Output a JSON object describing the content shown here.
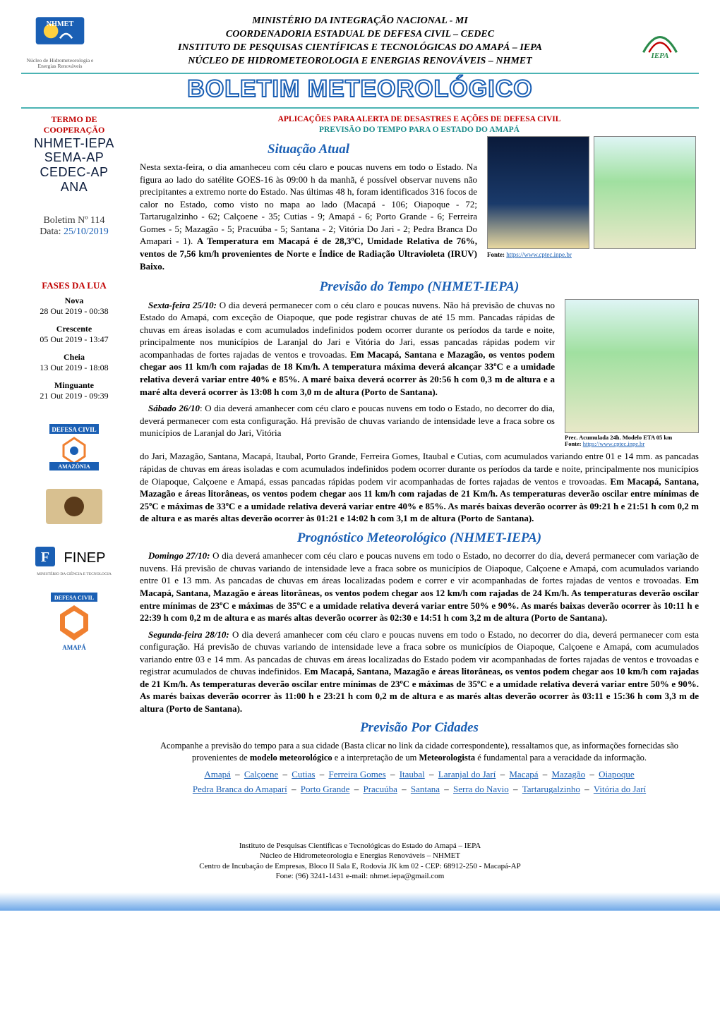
{
  "header": {
    "line1": "MINISTÉRIO DA INTEGRAÇÃO NACIONAL - MI",
    "line2": "COORDENADORIA ESTADUAL DE DEFESA CIVIL – CEDEC",
    "line3": "INSTITUTO DE PESQUISAS CIENTÍFICAS E TECNOLÓGICAS DO AMAPÁ – IEPA",
    "line4": "NÚCLEO DE HIDROMETEOROLOGIA E ENERGIAS RENOVÁVEIS – NHMET",
    "logo_left_caption": "Núcleo de Hidrometeorologia e Energias Renováveis",
    "logo_right_text": "IEPA"
  },
  "banner": {
    "title": "BOLETIM METEOROLÓGICO"
  },
  "sidebar": {
    "termo_label1": "TERMO DE",
    "termo_label2": "COOPERAÇÃO",
    "slab1": "NHMET-IEPA",
    "slab2": "SEMA-AP",
    "slab3": "CEDEC-AP",
    "slab4": "ANA",
    "boletim_label": "Boletim Nº ",
    "boletim_num": "114",
    "data_label": "Data: ",
    "data_value": "25/10/2019",
    "moon_title": "FASES DA LUA",
    "moon": [
      {
        "name": "Nova",
        "dt": "28 Out 2019 -  00:38"
      },
      {
        "name": "Crescente",
        "dt": "05 Out 2019 -  13:47"
      },
      {
        "name": "Cheia",
        "dt": "13 Out 2019 -  18:08"
      },
      {
        "name": "Minguante",
        "dt": "21 Out 2019 -  09:39"
      }
    ],
    "finep_text": "FINEP",
    "finep_sub": "MINISTÉRIO DA CIÊNCIA E TECNOLOGIA"
  },
  "alert": {
    "line_red": "APLICAÇÕES PARA ALERTA DE DESASTRES E AÇÕES DE DEFESA CIVIL",
    "line_teal": "PREVISÃO DO TEMPO PARA O ESTADO DO AMAPÁ"
  },
  "situacao": {
    "title": "Situação Atual",
    "body_plain": "Nesta sexta-feira, o dia amanheceu com céu claro e poucas nuvens em todo o Estado. Na figura ao lado do satélite GOES-16 às 09:00 h da manhã, é possível observar nuvens não precipitantes a extremo norte do Estado. Nas últimas 48 h, foram identificados 316 focos de calor no Estado, como visto no mapa ao lado (Macapá - 106; Oiapoque - 72; Tartarugalzinho - 62; Calçoene - 35; Cutias - 9; Amapá - 6; Porto Grande - 6; Ferreira Gomes - 5; Mazagão - 5; Pracuúba - 5; Santana - 2; Vitória Do Jari - 2; Pedra Branca Do Amapari - 1). ",
    "body_bold": "A Temperatura em Macapá é de 28,3ºC, Umidade Relativa de 76%, ventos de 7,56 km/h provenientes de Norte e Índice de Radiação Ultravioleta (IRUV) Baixo.",
    "fonte_label": "Fonte: ",
    "fonte_url": "https://www.cptec.inpe.br"
  },
  "previsao": {
    "title": "Previsão do Tempo (NHMET-IEPA)",
    "friday_label": "Sexta-feira 25/10:",
    "friday_plain": "   O dia deverá permanecer com o céu claro e poucas nuvens. Não há previsão de chuvas no Estado do Amapá, com exceção de Oiapoque, que pode registrar chuvas de até 15 mm. Pancadas rápidas de chuvas em áreas isoladas e com acumulados indefinidos podem ocorrer durante os períodos da tarde e noite, principalmente nos municípios de Laranjal do Jari e Vitória do Jari, essas pancadas rápidas podem vir acompanhadas de fortes rajadas de ventos e trovoadas. ",
    "friday_bold": "Em Macapá, Santana e Mazagão, os ventos podem chegar aos 11 km/h com rajadas de 18 Km/h. A temperatura máxima deverá alcançar 33ºC e a umidade relativa deverá variar entre 40% e 85%. A maré baixa deverá ocorrer às 20:56 h com 0,3 m de altura e a maré alta deverá ocorrer às 13:08 h com 3,0 m de altura (Porto de Santana).",
    "sat_label": "Sábado 26/10",
    "sat_plain1": ":   O dia deverá amanhecer com céu claro e poucas nuvens em todo o Estado, no decorrer do dia, deverá permanecer com esta configuração. Há previsão de chuvas variando de intensidade leve a fraca sobre os municípios de Laranjal do Jari, Vitória",
    "sat_plain2": "do Jari, Mazagão, Santana, Macapá, Itaubal, Porto Grande, Ferreira Gomes, Itaubal e Cutias, com acumulados variando entre 01 e 14 mm.  as pancadas rápidas de chuvas em áreas isoladas e com acumulados indefinidos podem ocorrer durante os períodos da tarde e noite, principalmente nos municípios de Oiapoque, Calçoene e Amapá, essas pancadas rápidas podem vir acompanhadas de fortes rajadas de ventos e trovoadas. ",
    "sat_bold": "Em Macapá, Santana, Mazagão e áreas litorâneas, os ventos podem chegar aos 11 km/h com rajadas de 21 Km/h. As temperaturas deverão oscilar entre mínimas de 25ºC e máximas de 33ºC e a umidade relativa deverá variar entre 40% e 85%. As marés baixas deverão ocorrer às 09:21 h e 21:51 h com 0,2 m de altura e as marés altas deverão ocorrer às 01:21 e 14:02 h com 3,1 m de altura (Porto de Santana).",
    "map_caption": "Prec. Acumulada 24h. Modelo ETA 05 km",
    "map_fonte_label": "Fonte: ",
    "map_fonte_url": "https://www.cptec.inpe.br"
  },
  "prognostico": {
    "title": "Prognóstico Meteorológico (NHMET-IEPA)",
    "sun_label": "Domingo 27/10:",
    "sun_plain": "   O dia deverá amanhecer com céu claro e poucas nuvens em todo o Estado, no decorrer do dia, deverá permanecer com variação de nuvens. Há previsão de chuvas variando de intensidade leve a fraca sobre os municípios de Oiapoque, Calçoene e Amapá, com acumulados variando entre 01 e 13 mm. As pancadas de chuvas em áreas localizadas podem e correr e vir acompanhadas de fortes rajadas de ventos e trovoadas. ",
    "sun_bold": "Em Macapá, Santana, Mazagão e áreas litorâneas, os ventos podem chegar aos 12 km/h com rajadas de 24 Km/h. As temperaturas deverão oscilar entre mínimas de 23ºC e máximas de 35ºC e a umidade relativa deverá variar entre 50% e 90%. As marés baixas deverão ocorrer às 10:11 h e 22:39 h com 0,2 m de altura e as marés altas deverão ocorrer às 02:30 e 14:51 h com 3,2 m de altura (Porto de Santana).",
    "mon_label": "Segunda-feira 28/10:",
    "mon_plain": "   O dia deverá amanhecer com céu claro e poucas nuvens em todo o Estado, no decorrer do dia, deverá permanecer com esta configuração. Há previsão de chuvas variando de intensidade leve a fraca sobre os municípios de Oiapoque, Calçoene e Amapá, com acumulados variando entre 03 e 14 mm. As pancadas de chuvas em áreas localizadas do Estado podem vir acompanhadas de fortes rajadas de ventos e trovoadas e registrar acumulados de chuvas indefinidos. ",
    "mon_bold": "Em Macapá, Santana, Mazagão e áreas litorâneas, os ventos podem chegar aos 10 km/h com rajadas de 21 Km/h. As temperaturas deverão oscilar entre mínimas de 23ºC e máximas de 35ºC e a umidade relativa deverá variar entre 50% e 90%. As marés baixas deverão ocorrer às 11:00 h e 23:21 h com 0,2 m de altura e as marés altas deverão ocorrer às 03:11 e 15:36 h com 3,3 m de altura (Porto de Santana)."
  },
  "cidades": {
    "title": "Previsão Por Cidades",
    "intro1": "Acompanhe a previsão do tempo para a sua cidade (Basta clicar no link da cidade correspondente), ressaltamos que, as informações fornecidas são provenientes de ",
    "intro_bold1": "modelo meteorológico",
    "intro2": " e a interpretação de um ",
    "intro_bold2": "Meteorologista",
    "intro3": " é fundamental para a veracidade da informação.",
    "row1": [
      "Amapá",
      "Calçoene",
      "Cutias",
      "Ferreira Gomes",
      "Itaubal",
      "Laranjal do Jarí",
      "Macapá",
      "Mazagão",
      "Oiapoque"
    ],
    "row2": [
      "Pedra Branca do Amaparí",
      "Porto Grande",
      "Pracuúba",
      "Santana",
      "Serra do Navio",
      "Tartarugalzinho",
      "Vitória do Jarí"
    ]
  },
  "footer": {
    "l1": "Instituto de Pesquisas Científicas e Tecnológicas do Estado do Amapá – IEPA",
    "l2": "Núcleo de Hidrometeorologia e Energias Renováveis – NHMET",
    "l3": "Centro de Incubação de Empresas, Bloco II Sala E, Rodovia JK km 02 - CEP: 68912-250 - Macapá-AP",
    "l4": "Fone: (96) 3241-1431 e-mail: nhmet.iepa@gmail.com"
  },
  "colors": {
    "red": "#c00000",
    "teal": "#1a8a8a",
    "blue": "#1a5fb4",
    "navy": "#0a1a3a"
  }
}
